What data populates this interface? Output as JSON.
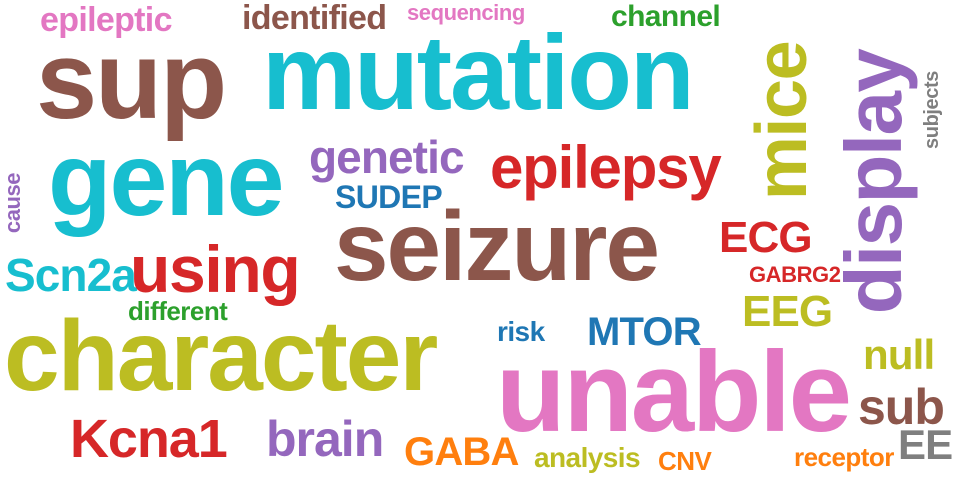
{
  "words": [
    {
      "id": "epileptic",
      "text": "epileptic",
      "color": "#e377c2",
      "vertical": false
    },
    {
      "id": "identified",
      "text": "identified",
      "color": "#8c564b",
      "vertical": false
    },
    {
      "id": "sequencing",
      "text": "sequencing",
      "color": "#e377c2",
      "vertical": false
    },
    {
      "id": "channel",
      "text": "channel",
      "color": "#2ca02c",
      "vertical": false
    },
    {
      "id": "sup",
      "text": "sup",
      "color": "#8c564b",
      "vertical": false
    },
    {
      "id": "mutation",
      "text": "mutation",
      "color": "#17becf",
      "vertical": false
    },
    {
      "id": "mice",
      "text": "mice",
      "color": "#bcbd22",
      "vertical": true
    },
    {
      "id": "display",
      "text": "display",
      "color": "#9467bd",
      "vertical": true
    },
    {
      "id": "subjects",
      "text": "subjects",
      "color": "#7f7f7f",
      "vertical": true
    },
    {
      "id": "gene",
      "text": "gene",
      "color": "#17becf",
      "vertical": false
    },
    {
      "id": "genetic",
      "text": "genetic",
      "color": "#9467bd",
      "vertical": false
    },
    {
      "id": "epilepsy",
      "text": "epilepsy",
      "color": "#d62728",
      "vertical": false
    },
    {
      "id": "sudep",
      "text": "SUDEP",
      "color": "#1f77b4",
      "vertical": false
    },
    {
      "id": "cause",
      "text": "cause",
      "color": "#9467bd",
      "vertical": true
    },
    {
      "id": "seizure",
      "text": "seizure",
      "color": "#8c564b",
      "vertical": false
    },
    {
      "id": "ecg",
      "text": "ECG",
      "color": "#d62728",
      "vertical": false
    },
    {
      "id": "scn2a",
      "text": "Scn2a",
      "color": "#17becf",
      "vertical": false
    },
    {
      "id": "using",
      "text": "using",
      "color": "#d62728",
      "vertical": false
    },
    {
      "id": "gabrg2",
      "text": "GABRG2",
      "color": "#d62728",
      "vertical": false
    },
    {
      "id": "eeg",
      "text": "EEG",
      "color": "#bcbd22",
      "vertical": false
    },
    {
      "id": "different",
      "text": "different",
      "color": "#2ca02c",
      "vertical": false
    },
    {
      "id": "character",
      "text": "character",
      "color": "#bcbd22",
      "vertical": false
    },
    {
      "id": "risk",
      "text": "risk",
      "color": "#1f77b4",
      "vertical": false
    },
    {
      "id": "mtor",
      "text": "MTOR",
      "color": "#1f77b4",
      "vertical": false
    },
    {
      "id": "null",
      "text": "null",
      "color": "#bcbd22",
      "vertical": false
    },
    {
      "id": "unable",
      "text": "unable",
      "color": "#e377c2",
      "vertical": false
    },
    {
      "id": "sub",
      "text": "sub",
      "color": "#8c564b",
      "vertical": false
    },
    {
      "id": "kcna1",
      "text": "Kcna1",
      "color": "#d62728",
      "vertical": false
    },
    {
      "id": "brain",
      "text": "brain",
      "color": "#9467bd",
      "vertical": false
    },
    {
      "id": "gaba",
      "text": "GABA",
      "color": "#ff7f0e",
      "vertical": false
    },
    {
      "id": "analysis",
      "text": "analysis",
      "color": "#bcbd22",
      "vertical": false
    },
    {
      "id": "cnv",
      "text": "CNV",
      "color": "#ff7f0e",
      "vertical": false
    },
    {
      "id": "receptor",
      "text": "receptor",
      "color": "#ff7f0e",
      "vertical": false
    },
    {
      "id": "ee",
      "text": "EE",
      "color": "#7f7f7f",
      "vertical": false
    }
  ]
}
